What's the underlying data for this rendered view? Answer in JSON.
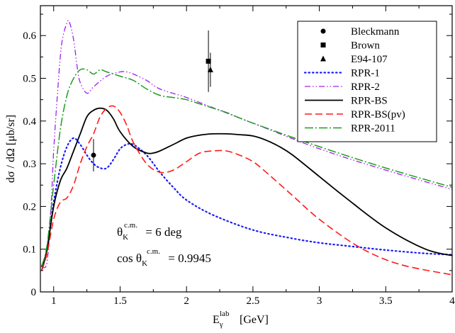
{
  "chart_data": {
    "type": "line",
    "xlabel": {
      "main": "E",
      "sub": "γ",
      "sup": "lab",
      "unit": "[GeV]"
    },
    "ylabel": "dσ / dΩ  [μb/sr]",
    "xlim": [
      0.9,
      4.0
    ],
    "ylim": [
      0,
      0.67
    ],
    "xticks": [
      {
        "v": 1,
        "label": "1"
      },
      {
        "v": 1.5,
        "label": "1.5"
      },
      {
        "v": 2,
        "label": "2"
      },
      {
        "v": 2.5,
        "label": "2.5"
      },
      {
        "v": 3,
        "label": "3"
      },
      {
        "v": 3.5,
        "label": "3.5"
      },
      {
        "v": 4,
        "label": "4"
      }
    ],
    "yticks": [
      {
        "v": 0,
        "label": "0"
      },
      {
        "v": 0.1,
        "label": "0.1"
      },
      {
        "v": 0.2,
        "label": "0.2"
      },
      {
        "v": 0.3,
        "label": "0.3"
      },
      {
        "v": 0.4,
        "label": "0.4"
      },
      {
        "v": 0.5,
        "label": "0.5"
      },
      {
        "v": 0.6,
        "label": "0.6"
      }
    ],
    "grid": false,
    "legend_position": "top-right",
    "annotations": [
      {
        "text": "θ",
        "sub": "K",
        "sup": "c.m.",
        "suffix": " = 6 deg"
      },
      {
        "text": "cos θ",
        "sub": "K",
        "sup": "c.m.",
        "suffix": " = 0.9945"
      }
    ],
    "data_series": [
      {
        "name": "Bleckmann",
        "marker": "circle",
        "x": [
          1.3
        ],
        "y": [
          0.32
        ],
        "err": [
          0.038
        ]
      },
      {
        "name": "Brown",
        "marker": "square",
        "x": [
          2.165
        ],
        "y": [
          0.54
        ],
        "err": [
          0.072
        ]
      },
      {
        "name": "E94-107",
        "marker": "triangle",
        "x": [
          2.18
        ],
        "y": [
          0.52
        ],
        "err": [
          0.04
        ]
      }
    ],
    "series": [
      {
        "name": "RPR-1",
        "color": "#1a1aff",
        "dash": "1.5,4",
        "width": 2.2,
        "x": [
          0.91,
          0.95,
          1.0,
          1.05,
          1.1,
          1.15,
          1.2,
          1.25,
          1.3,
          1.35,
          1.4,
          1.45,
          1.5,
          1.55,
          1.6,
          1.7,
          1.8,
          1.9,
          2.0,
          2.2,
          2.5,
          2.8,
          3.0,
          3.2,
          3.5,
          3.8,
          4.0
        ],
        "y": [
          0.06,
          0.1,
          0.21,
          0.29,
          0.34,
          0.36,
          0.345,
          0.32,
          0.3,
          0.29,
          0.29,
          0.31,
          0.335,
          0.345,
          0.345,
          0.32,
          0.28,
          0.245,
          0.215,
          0.18,
          0.145,
          0.125,
          0.115,
          0.108,
          0.098,
          0.09,
          0.087
        ]
      },
      {
        "name": "RPR-2",
        "color": "#a020f0",
        "dash": "8,3,1.5,3,1.5,3",
        "width": 1.3,
        "x": [
          0.91,
          0.95,
          0.98,
          1.0,
          1.03,
          1.06,
          1.1,
          1.12,
          1.15,
          1.18,
          1.2,
          1.25,
          1.3,
          1.4,
          1.5,
          1.55,
          1.6,
          1.7,
          1.8,
          2.0,
          2.25,
          2.5,
          3.0,
          3.5,
          4.0
        ],
        "y": [
          0.06,
          0.07,
          0.2,
          0.33,
          0.47,
          0.58,
          0.63,
          0.63,
          0.59,
          0.52,
          0.49,
          0.465,
          0.48,
          0.505,
          0.515,
          0.515,
          0.51,
          0.495,
          0.475,
          0.455,
          0.425,
          0.395,
          0.335,
          0.285,
          0.24
        ]
      },
      {
        "name": "RPR-BS",
        "color": "#000000",
        "dash": "",
        "width": 1.8,
        "x": [
          0.91,
          0.95,
          1.0,
          1.05,
          1.1,
          1.15,
          1.2,
          1.25,
          1.3,
          1.35,
          1.4,
          1.45,
          1.5,
          1.6,
          1.7,
          1.75,
          1.8,
          1.9,
          2.0,
          2.1,
          2.2,
          2.3,
          2.4,
          2.5,
          2.6,
          2.7,
          2.8,
          3.0,
          3.2,
          3.5,
          3.8,
          4.0
        ],
        "y": [
          0.05,
          0.1,
          0.2,
          0.26,
          0.29,
          0.33,
          0.37,
          0.41,
          0.425,
          0.43,
          0.425,
          0.405,
          0.375,
          0.34,
          0.325,
          0.325,
          0.33,
          0.345,
          0.36,
          0.367,
          0.37,
          0.37,
          0.368,
          0.365,
          0.355,
          0.34,
          0.32,
          0.27,
          0.22,
          0.15,
          0.1,
          0.085
        ]
      },
      {
        "name": "RPR-BS(pv)",
        "color": "#ff1a1a",
        "dash": "10,5",
        "width": 1.6,
        "x": [
          0.91,
          0.95,
          1.0,
          1.05,
          1.1,
          1.15,
          1.2,
          1.25,
          1.3,
          1.35,
          1.4,
          1.45,
          1.5,
          1.55,
          1.6,
          1.7,
          1.8,
          1.9,
          2.0,
          2.1,
          2.2,
          2.3,
          2.4,
          2.5,
          2.6,
          2.8,
          3.0,
          3.3,
          3.6,
          4.0
        ],
        "y": [
          0.05,
          0.09,
          0.17,
          0.21,
          0.22,
          0.25,
          0.3,
          0.34,
          0.37,
          0.41,
          0.43,
          0.435,
          0.42,
          0.39,
          0.35,
          0.3,
          0.28,
          0.285,
          0.305,
          0.325,
          0.33,
          0.33,
          0.32,
          0.305,
          0.28,
          0.225,
          0.17,
          0.105,
          0.065,
          0.04
        ]
      },
      {
        "name": "RPR-2011",
        "color": "#1f9c1f",
        "dash": "12,3,2,3",
        "width": 1.5,
        "x": [
          0.91,
          0.95,
          1.0,
          1.05,
          1.1,
          1.15,
          1.2,
          1.25,
          1.3,
          1.35,
          1.4,
          1.5,
          1.6,
          1.7,
          1.8,
          1.9,
          2.0,
          2.1,
          2.2,
          2.3,
          2.5,
          3.0,
          3.5,
          4.0
        ],
        "y": [
          0.06,
          0.11,
          0.25,
          0.38,
          0.46,
          0.5,
          0.52,
          0.52,
          0.51,
          0.52,
          0.515,
          0.505,
          0.495,
          0.475,
          0.46,
          0.455,
          0.45,
          0.44,
          0.43,
          0.42,
          0.395,
          0.34,
          0.29,
          0.245
        ]
      }
    ]
  }
}
